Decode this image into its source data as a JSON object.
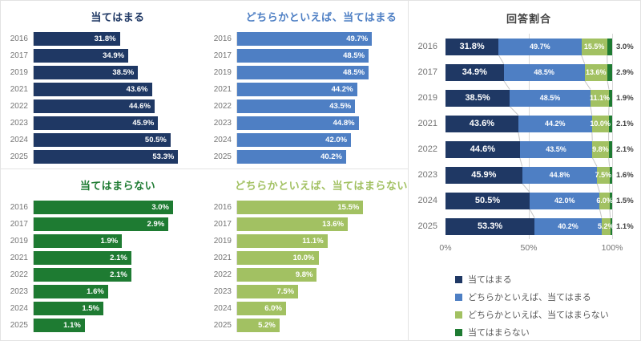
{
  "colors": {
    "navy": "#1F3864",
    "blue": "#4E7FC4",
    "light_green": "#A2C162",
    "dark_green": "#1E7B32",
    "title_gray": "#404040",
    "axis_text": "#757575",
    "legend_text": "#595959",
    "grid_line": "#D9D9D9",
    "connector_line": "#C6C6C6",
    "panel_border": "#E3E3E3"
  },
  "chart_data": [
    {
      "type": "bar",
      "orientation": "horizontal",
      "title": "当てはまる",
      "color_key": "navy",
      "categories": [
        "2016",
        "2017",
        "2019",
        "2021",
        "2022",
        "2023",
        "2024",
        "2025"
      ],
      "values": [
        31.8,
        34.9,
        38.5,
        43.6,
        44.6,
        45.9,
        50.5,
        53.3
      ],
      "labels": [
        "31.8%",
        "34.9%",
        "38.5%",
        "43.6%",
        "44.6%",
        "45.9%",
        "50.5%",
        "53.3%"
      ],
      "xlim": [
        0,
        60
      ],
      "grid": false,
      "label_position": "inside-end"
    },
    {
      "type": "bar",
      "orientation": "horizontal",
      "title": "どちらかといえば、当てはまる",
      "color_key": "blue",
      "categories": [
        "2016",
        "2017",
        "2019",
        "2021",
        "2022",
        "2023",
        "2024",
        "2025"
      ],
      "values": [
        49.7,
        48.5,
        48.5,
        44.2,
        43.5,
        44.8,
        42.0,
        40.2
      ],
      "labels": [
        "49.7%",
        "48.5%",
        "48.5%",
        "44.2%",
        "43.5%",
        "44.8%",
        "42.0%",
        "40.2%"
      ],
      "xlim": [
        0,
        60
      ],
      "grid": false,
      "label_position": "inside-end"
    },
    {
      "type": "bar",
      "orientation": "horizontal",
      "title": "当てはまらない",
      "color_key": "dark_green",
      "categories": [
        "2016",
        "2017",
        "2019",
        "2021",
        "2022",
        "2023",
        "2024",
        "2025"
      ],
      "values": [
        3.0,
        2.9,
        1.9,
        2.1,
        2.1,
        1.6,
        1.5,
        1.1
      ],
      "labels": [
        "3.0%",
        "2.9%",
        "1.9%",
        "2.1%",
        "2.1%",
        "1.6%",
        "1.5%",
        "1.1%"
      ],
      "xlim": [
        0,
        3.5
      ],
      "grid": false,
      "label_position": "inside-end"
    },
    {
      "type": "bar",
      "orientation": "horizontal",
      "title": "どちらかといえば、当てはまらない",
      "color_key": "light_green",
      "categories": [
        "2016",
        "2017",
        "2019",
        "2021",
        "2022",
        "2023",
        "2024",
        "2025"
      ],
      "values": [
        15.5,
        13.6,
        11.1,
        10.0,
        9.8,
        7.5,
        6.0,
        5.2
      ],
      "labels": [
        "15.5%",
        "13.6%",
        "11.1%",
        "10.0%",
        "9.8%",
        "7.5%",
        "6.0%",
        "5.2%"
      ],
      "xlim": [
        0,
        20
      ],
      "grid": false,
      "label_position": "inside-end"
    },
    {
      "type": "bar",
      "subtype": "stacked-100",
      "orientation": "horizontal",
      "title": "回答割合",
      "title_color_key": "title_gray",
      "categories": [
        "2016",
        "2017",
        "2019",
        "2021",
        "2022",
        "2023",
        "2024",
        "2025"
      ],
      "series": [
        {
          "name": "当てはまる",
          "color_key": "navy",
          "values": [
            31.8,
            34.9,
            38.5,
            43.6,
            44.6,
            45.9,
            50.5,
            53.3
          ],
          "labels": [
            "31.8%",
            "34.9%",
            "38.5%",
            "43.6%",
            "44.6%",
            "45.9%",
            "50.5%",
            "53.3%"
          ],
          "labels_outside": false
        },
        {
          "name": "どちらかといえば、当てはまる",
          "color_key": "blue",
          "values": [
            49.7,
            48.5,
            48.5,
            44.2,
            43.5,
            44.8,
            42.0,
            40.2
          ],
          "labels": [
            "49.7%",
            "48.5%",
            "48.5%",
            "44.2%",
            "43.5%",
            "44.8%",
            "42.0%",
            "40.2%"
          ],
          "labels_outside": false
        },
        {
          "name": "どちらかといえば、当てはまらない",
          "color_key": "light_green",
          "values": [
            15.5,
            13.6,
            11.1,
            10.0,
            9.8,
            7.5,
            6.0,
            5.2
          ],
          "labels": [
            "15.5%",
            "13.6%",
            "11.1%",
            "10.0%",
            "9.8%",
            "7.5%",
            "6.0%",
            "5.2%"
          ],
          "labels_outside": false
        },
        {
          "name": "当てはまらない",
          "color_key": "dark_green",
          "values": [
            3.0,
            2.9,
            1.9,
            2.1,
            2.1,
            1.6,
            1.5,
            1.1
          ],
          "labels": [
            "3.0%",
            "2.9%",
            "1.9%",
            "2.1%",
            "2.1%",
            "1.6%",
            "1.5%",
            "1.1%"
          ],
          "labels_outside": true
        }
      ],
      "xlim": [
        0,
        100
      ],
      "xticks": [
        {
          "pos": 0,
          "label": "0%"
        },
        {
          "pos": 50,
          "label": "50%"
        },
        {
          "pos": 100,
          "label": "100%"
        }
      ],
      "grid": true,
      "gridline_positions": [
        50,
        100
      ],
      "legend": [
        "当てはまる",
        "どちらかといえば、当てはまる",
        "どちらかといえば、当てはまらない",
        "当てはまらない"
      ],
      "legend_position": "bottom-left",
      "connector_lines": true
    }
  ]
}
